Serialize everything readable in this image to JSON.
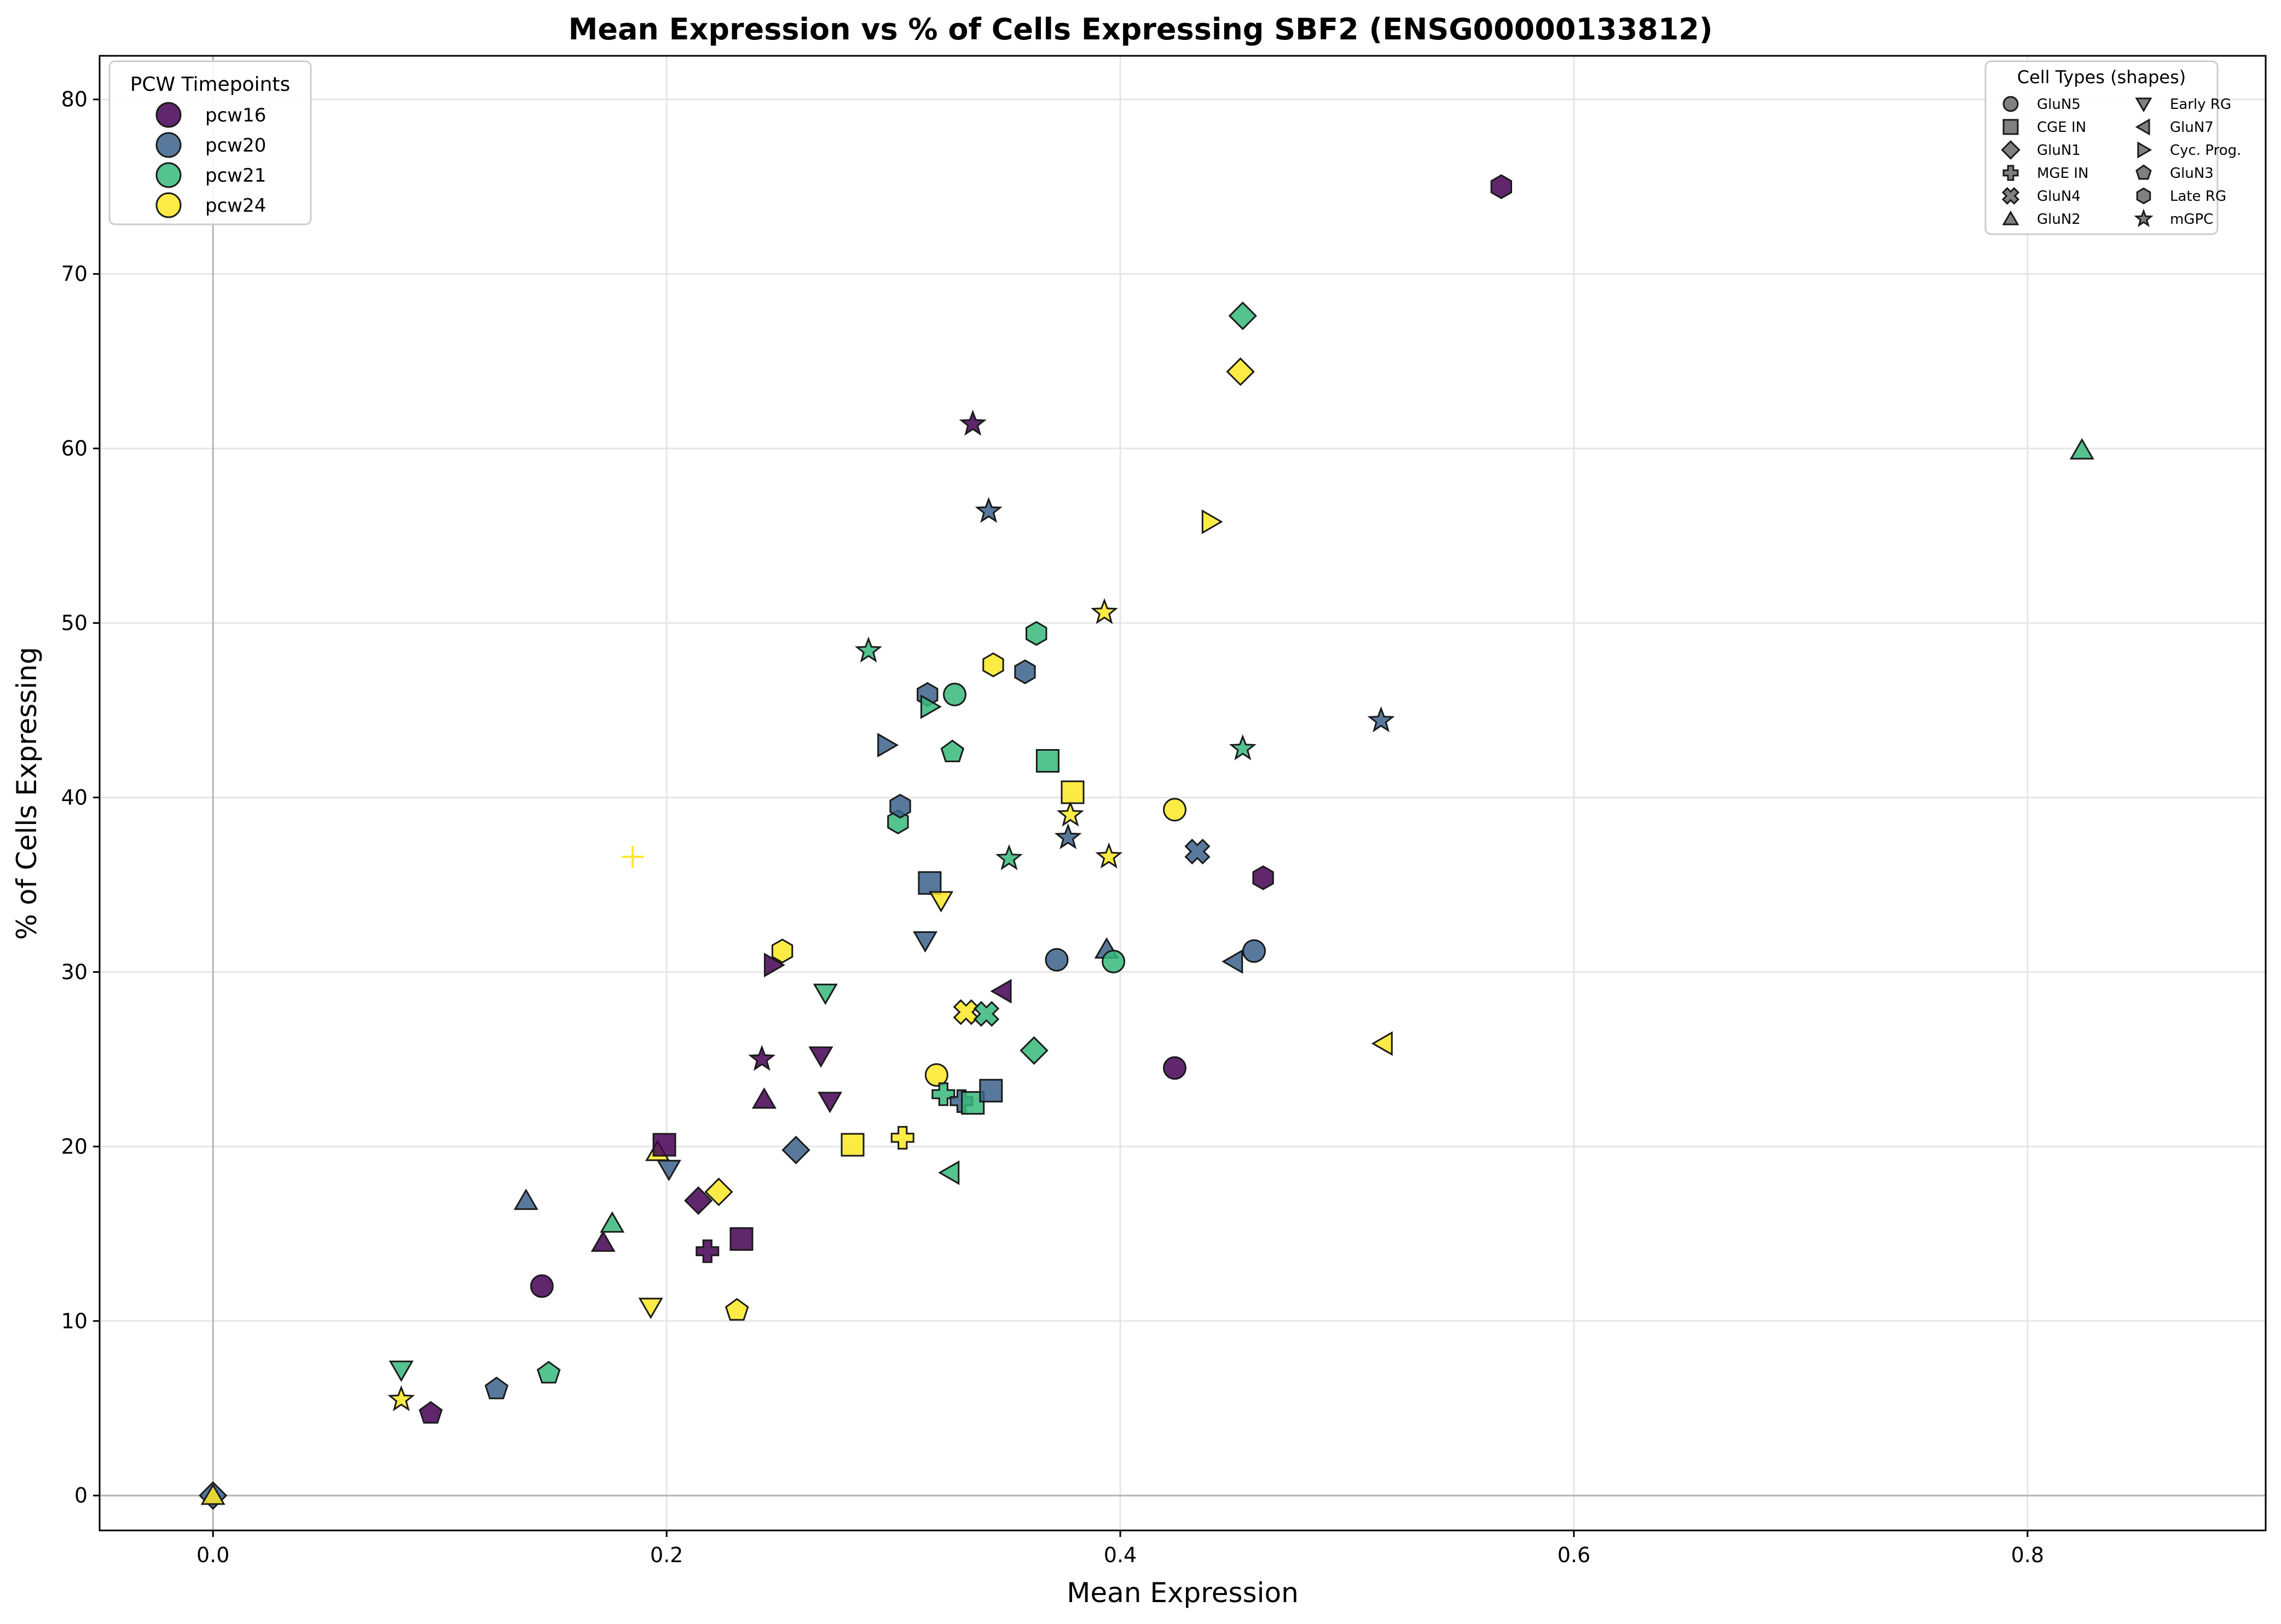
{
  "chart_data": {
    "type": "scatter",
    "title": "Mean Expression vs % of Cells Expressing SBF2 (ENSG00000133812)",
    "xlabel": "Mean Expression",
    "ylabel": "% of Cells Expressing",
    "xlim": [
      -0.05,
      0.905
    ],
    "ylim": [
      -2,
      82.5
    ],
    "xticks": [
      0.0,
      0.2,
      0.4,
      0.6,
      0.8
    ],
    "xtick_labels": [
      "0.0",
      "0.2",
      "0.4",
      "0.6",
      "0.8"
    ],
    "yticks": [
      0,
      10,
      20,
      30,
      40,
      50,
      60,
      70,
      80
    ],
    "ytick_labels": [
      "0",
      "10",
      "20",
      "30",
      "40",
      "50",
      "60",
      "70",
      "80"
    ],
    "grid": true,
    "reference_lines": {
      "x": 0,
      "y": 0
    },
    "timepoint_legend": {
      "title": "PCW Timepoints",
      "placement": "top-left",
      "entries": [
        {
          "name": "pcw16",
          "color": "#440154"
        },
        {
          "name": "pcw20",
          "color": "#3b628b"
        },
        {
          "name": "pcw21",
          "color": "#36b87a"
        },
        {
          "name": "pcw24",
          "color": "#fde725"
        }
      ]
    },
    "shape_legend": {
      "title": "Cell Types (shapes)",
      "placement": "top-right",
      "entries": [
        {
          "name": "GluN5",
          "shape": "circle"
        },
        {
          "name": "CGE IN",
          "shape": "square"
        },
        {
          "name": "GluN1",
          "shape": "diamond"
        },
        {
          "name": "MGE IN",
          "shape": "plus"
        },
        {
          "name": "GluN4",
          "shape": "x"
        },
        {
          "name": "GluN2",
          "shape": "triangle-up"
        },
        {
          "name": "Early RG",
          "shape": "triangle-down"
        },
        {
          "name": "GluN7",
          "shape": "triangle-left"
        },
        {
          "name": "Cyc. Prog.",
          "shape": "triangle-right"
        },
        {
          "name": "GluN3",
          "shape": "pentagon"
        },
        {
          "name": "Late RG",
          "shape": "hexagon"
        },
        {
          "name": "mGPC",
          "shape": "star"
        }
      ]
    },
    "points": [
      {
        "x": 0.0,
        "y": 0.0,
        "timepoint": "pcw20",
        "shape": "diamond"
      },
      {
        "x": 0.0,
        "y": 0.0,
        "timepoint": "pcw24",
        "shape": "triangle-up"
      },
      {
        "x": 0.083,
        "y": 5.5,
        "timepoint": "pcw24",
        "shape": "star"
      },
      {
        "x": 0.083,
        "y": 7.2,
        "timepoint": "pcw21",
        "shape": "triangle-down"
      },
      {
        "x": 0.096,
        "y": 4.7,
        "timepoint": "pcw16",
        "shape": "pentagon"
      },
      {
        "x": 0.125,
        "y": 6.1,
        "timepoint": "pcw20",
        "shape": "pentagon"
      },
      {
        "x": 0.138,
        "y": 16.9,
        "timepoint": "pcw20",
        "shape": "triangle-up"
      },
      {
        "x": 0.145,
        "y": 12.0,
        "timepoint": "pcw16",
        "shape": "circle"
      },
      {
        "x": 0.148,
        "y": 7.0,
        "timepoint": "pcw21",
        "shape": "pentagon"
      },
      {
        "x": 0.172,
        "y": 14.5,
        "timepoint": "pcw16",
        "shape": "triangle-up"
      },
      {
        "x": 0.176,
        "y": 15.6,
        "timepoint": "pcw21",
        "shape": "triangle-up"
      },
      {
        "x": 0.185,
        "y": 36.6,
        "timepoint": "pcw24",
        "shape": "plus-thin"
      },
      {
        "x": 0.193,
        "y": 10.8,
        "timepoint": "pcw24",
        "shape": "triangle-down"
      },
      {
        "x": 0.196,
        "y": 19.7,
        "timepoint": "pcw24",
        "shape": "triangle-up"
      },
      {
        "x": 0.199,
        "y": 20.1,
        "timepoint": "pcw16",
        "shape": "square"
      },
      {
        "x": 0.201,
        "y": 18.7,
        "timepoint": "pcw20",
        "shape": "triangle-down"
      },
      {
        "x": 0.214,
        "y": 16.9,
        "timepoint": "pcw16",
        "shape": "diamond"
      },
      {
        "x": 0.218,
        "y": 14.0,
        "timepoint": "pcw16",
        "shape": "plus"
      },
      {
        "x": 0.223,
        "y": 17.4,
        "timepoint": "pcw24",
        "shape": "diamond"
      },
      {
        "x": 0.231,
        "y": 10.6,
        "timepoint": "pcw24",
        "shape": "pentagon"
      },
      {
        "x": 0.233,
        "y": 14.7,
        "timepoint": "pcw16",
        "shape": "square"
      },
      {
        "x": 0.242,
        "y": 25.0,
        "timepoint": "pcw16",
        "shape": "star"
      },
      {
        "x": 0.243,
        "y": 22.7,
        "timepoint": "pcw16",
        "shape": "triangle-up"
      },
      {
        "x": 0.247,
        "y": 30.4,
        "timepoint": "pcw16",
        "shape": "triangle-right"
      },
      {
        "x": 0.251,
        "y": 31.2,
        "timepoint": "pcw24",
        "shape": "hexagon"
      },
      {
        "x": 0.257,
        "y": 19.8,
        "timepoint": "pcw20",
        "shape": "diamond"
      },
      {
        "x": 0.268,
        "y": 25.2,
        "timepoint": "pcw16",
        "shape": "triangle-down"
      },
      {
        "x": 0.27,
        "y": 28.8,
        "timepoint": "pcw21",
        "shape": "triangle-down"
      },
      {
        "x": 0.272,
        "y": 22.6,
        "timepoint": "pcw16",
        "shape": "triangle-down"
      },
      {
        "x": 0.282,
        "y": 20.1,
        "timepoint": "pcw24",
        "shape": "square"
      },
      {
        "x": 0.289,
        "y": 48.4,
        "timepoint": "pcw21",
        "shape": "star"
      },
      {
        "x": 0.297,
        "y": 43.0,
        "timepoint": "pcw20",
        "shape": "triangle-right"
      },
      {
        "x": 0.302,
        "y": 38.6,
        "timepoint": "pcw21",
        "shape": "hexagon"
      },
      {
        "x": 0.303,
        "y": 39.5,
        "timepoint": "pcw20",
        "shape": "hexagon"
      },
      {
        "x": 0.304,
        "y": 20.5,
        "timepoint": "pcw24",
        "shape": "plus"
      },
      {
        "x": 0.314,
        "y": 31.8,
        "timepoint": "pcw20",
        "shape": "triangle-down"
      },
      {
        "x": 0.315,
        "y": 45.9,
        "timepoint": "pcw20",
        "shape": "hexagon"
      },
      {
        "x": 0.316,
        "y": 45.2,
        "timepoint": "pcw21",
        "shape": "triangle-right"
      },
      {
        "x": 0.316,
        "y": 35.1,
        "timepoint": "pcw20",
        "shape": "square"
      },
      {
        "x": 0.319,
        "y": 24.1,
        "timepoint": "pcw24",
        "shape": "circle"
      },
      {
        "x": 0.321,
        "y": 34.1,
        "timepoint": "pcw24",
        "shape": "triangle-down"
      },
      {
        "x": 0.322,
        "y": 23.0,
        "timepoint": "pcw21",
        "shape": "plus"
      },
      {
        "x": 0.325,
        "y": 18.5,
        "timepoint": "pcw21",
        "shape": "triangle-left"
      },
      {
        "x": 0.326,
        "y": 42.6,
        "timepoint": "pcw21",
        "shape": "pentagon"
      },
      {
        "x": 0.327,
        "y": 45.9,
        "timepoint": "pcw21",
        "shape": "circle"
      },
      {
        "x": 0.33,
        "y": 22.6,
        "timepoint": "pcw20",
        "shape": "plus"
      },
      {
        "x": 0.332,
        "y": 27.7,
        "timepoint": "pcw24",
        "shape": "x"
      },
      {
        "x": 0.335,
        "y": 61.4,
        "timepoint": "pcw16",
        "shape": "star"
      },
      {
        "x": 0.335,
        "y": 22.5,
        "timepoint": "pcw21",
        "shape": "square"
      },
      {
        "x": 0.341,
        "y": 27.6,
        "timepoint": "pcw21",
        "shape": "x"
      },
      {
        "x": 0.342,
        "y": 56.4,
        "timepoint": "pcw20",
        "shape": "star"
      },
      {
        "x": 0.343,
        "y": 23.2,
        "timepoint": "pcw20",
        "shape": "square"
      },
      {
        "x": 0.344,
        "y": 47.6,
        "timepoint": "pcw24",
        "shape": "hexagon"
      },
      {
        "x": 0.348,
        "y": 28.9,
        "timepoint": "pcw16",
        "shape": "triangle-left"
      },
      {
        "x": 0.351,
        "y": 36.5,
        "timepoint": "pcw21",
        "shape": "star"
      },
      {
        "x": 0.358,
        "y": 47.2,
        "timepoint": "pcw20",
        "shape": "hexagon"
      },
      {
        "x": 0.362,
        "y": 25.5,
        "timepoint": "pcw21",
        "shape": "diamond"
      },
      {
        "x": 0.363,
        "y": 49.4,
        "timepoint": "pcw21",
        "shape": "hexagon"
      },
      {
        "x": 0.368,
        "y": 42.1,
        "timepoint": "pcw21",
        "shape": "square"
      },
      {
        "x": 0.372,
        "y": 30.7,
        "timepoint": "pcw20",
        "shape": "circle"
      },
      {
        "x": 0.377,
        "y": 37.7,
        "timepoint": "pcw20",
        "shape": "star"
      },
      {
        "x": 0.378,
        "y": 39.0,
        "timepoint": "pcw24",
        "shape": "star"
      },
      {
        "x": 0.379,
        "y": 40.3,
        "timepoint": "pcw24",
        "shape": "square"
      },
      {
        "x": 0.393,
        "y": 50.6,
        "timepoint": "pcw24",
        "shape": "star"
      },
      {
        "x": 0.394,
        "y": 31.3,
        "timepoint": "pcw20",
        "shape": "triangle-up"
      },
      {
        "x": 0.395,
        "y": 36.6,
        "timepoint": "pcw24",
        "shape": "star"
      },
      {
        "x": 0.397,
        "y": 30.6,
        "timepoint": "pcw21",
        "shape": "circle"
      },
      {
        "x": 0.424,
        "y": 24.5,
        "timepoint": "pcw16",
        "shape": "circle"
      },
      {
        "x": 0.424,
        "y": 39.3,
        "timepoint": "pcw24",
        "shape": "circle"
      },
      {
        "x": 0.434,
        "y": 36.9,
        "timepoint": "pcw20",
        "shape": "x"
      },
      {
        "x": 0.44,
        "y": 55.8,
        "timepoint": "pcw24",
        "shape": "triangle-right"
      },
      {
        "x": 0.45,
        "y": 30.6,
        "timepoint": "pcw20",
        "shape": "triangle-left"
      },
      {
        "x": 0.453,
        "y": 64.4,
        "timepoint": "pcw24",
        "shape": "diamond"
      },
      {
        "x": 0.454,
        "y": 67.6,
        "timepoint": "pcw21",
        "shape": "diamond"
      },
      {
        "x": 0.454,
        "y": 42.8,
        "timepoint": "pcw21",
        "shape": "star"
      },
      {
        "x": 0.459,
        "y": 31.2,
        "timepoint": "pcw20",
        "shape": "circle"
      },
      {
        "x": 0.463,
        "y": 35.4,
        "timepoint": "pcw16",
        "shape": "hexagon"
      },
      {
        "x": 0.515,
        "y": 44.4,
        "timepoint": "pcw20",
        "shape": "star"
      },
      {
        "x": 0.516,
        "y": 25.9,
        "timepoint": "pcw24",
        "shape": "triangle-left"
      },
      {
        "x": 0.568,
        "y": 75.0,
        "timepoint": "pcw16",
        "shape": "hexagon"
      },
      {
        "x": 0.824,
        "y": 59.9,
        "timepoint": "pcw21",
        "shape": "triangle-up"
      }
    ]
  }
}
